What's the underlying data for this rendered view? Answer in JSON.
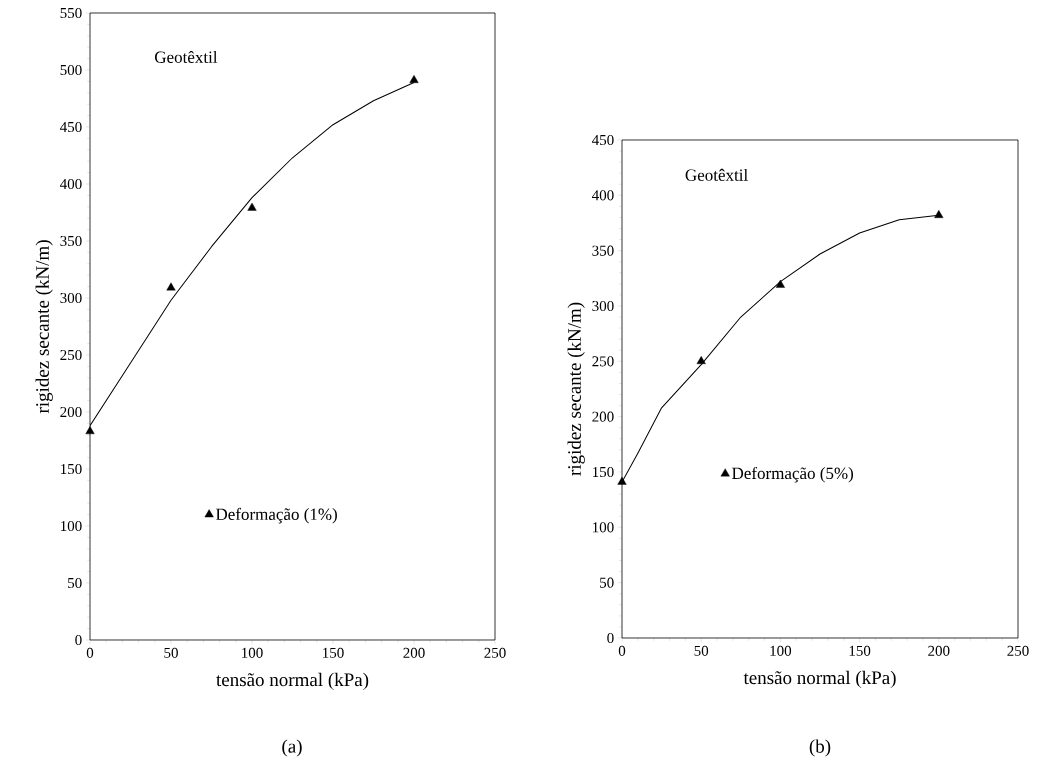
{
  "chart_data": [
    {
      "type": "scatter",
      "xlabel": "tensão normal (kPa)",
      "ylabel": "rigidez secante (kN/m)",
      "annotations": [
        "Geotêxtil",
        "(a)"
      ],
      "xlim": [
        0,
        250
      ],
      "ylim": [
        0,
        550
      ],
      "xticks": [
        0,
        50,
        100,
        150,
        200,
        250
      ],
      "yticks": [
        0,
        50,
        100,
        150,
        200,
        250,
        300,
        350,
        400,
        450,
        500,
        550
      ],
      "legend": "bottom",
      "grid": false,
      "series": [
        {
          "name": "Deformação (1%)",
          "marker": "triangle",
          "color": "#000000",
          "x": [
            0,
            50,
            100,
            200
          ],
          "values": [
            183,
            309,
            379,
            491
          ]
        },
        {
          "type": "line",
          "color": "#000000",
          "x": [
            0,
            25,
            50,
            75,
            100,
            125,
            150,
            175,
            200
          ],
          "values": [
            188,
            243,
            298,
            345,
            388,
            423,
            452,
            473,
            489
          ]
        }
      ]
    },
    {
      "type": "scatter",
      "xlabel": "tensão normal (kPa)",
      "ylabel": "rigidez secante (kN/m)",
      "annotations": [
        "Geotêxtil",
        "(b)"
      ],
      "xlim": [
        0,
        250
      ],
      "ylim": [
        0,
        450
      ],
      "xticks": [
        0,
        50,
        100,
        150,
        200,
        250
      ],
      "yticks": [
        0,
        50,
        100,
        150,
        200,
        250,
        300,
        350,
        400,
        450
      ],
      "legend": "center",
      "grid": false,
      "series": [
        {
          "name": "Deformação (5%)",
          "marker": "triangle",
          "color": "#000000",
          "x": [
            0,
            50,
            100,
            200
          ],
          "values": [
            141,
            250,
            319,
            382
          ]
        },
        {
          "type": "line",
          "color": "#000000",
          "x": [
            0,
            10,
            25,
            50,
            75,
            100,
            125,
            150,
            175,
            200
          ],
          "values": [
            141,
            167,
            208,
            247,
            290,
            322,
            347,
            366,
            378,
            382
          ]
        }
      ]
    }
  ]
}
